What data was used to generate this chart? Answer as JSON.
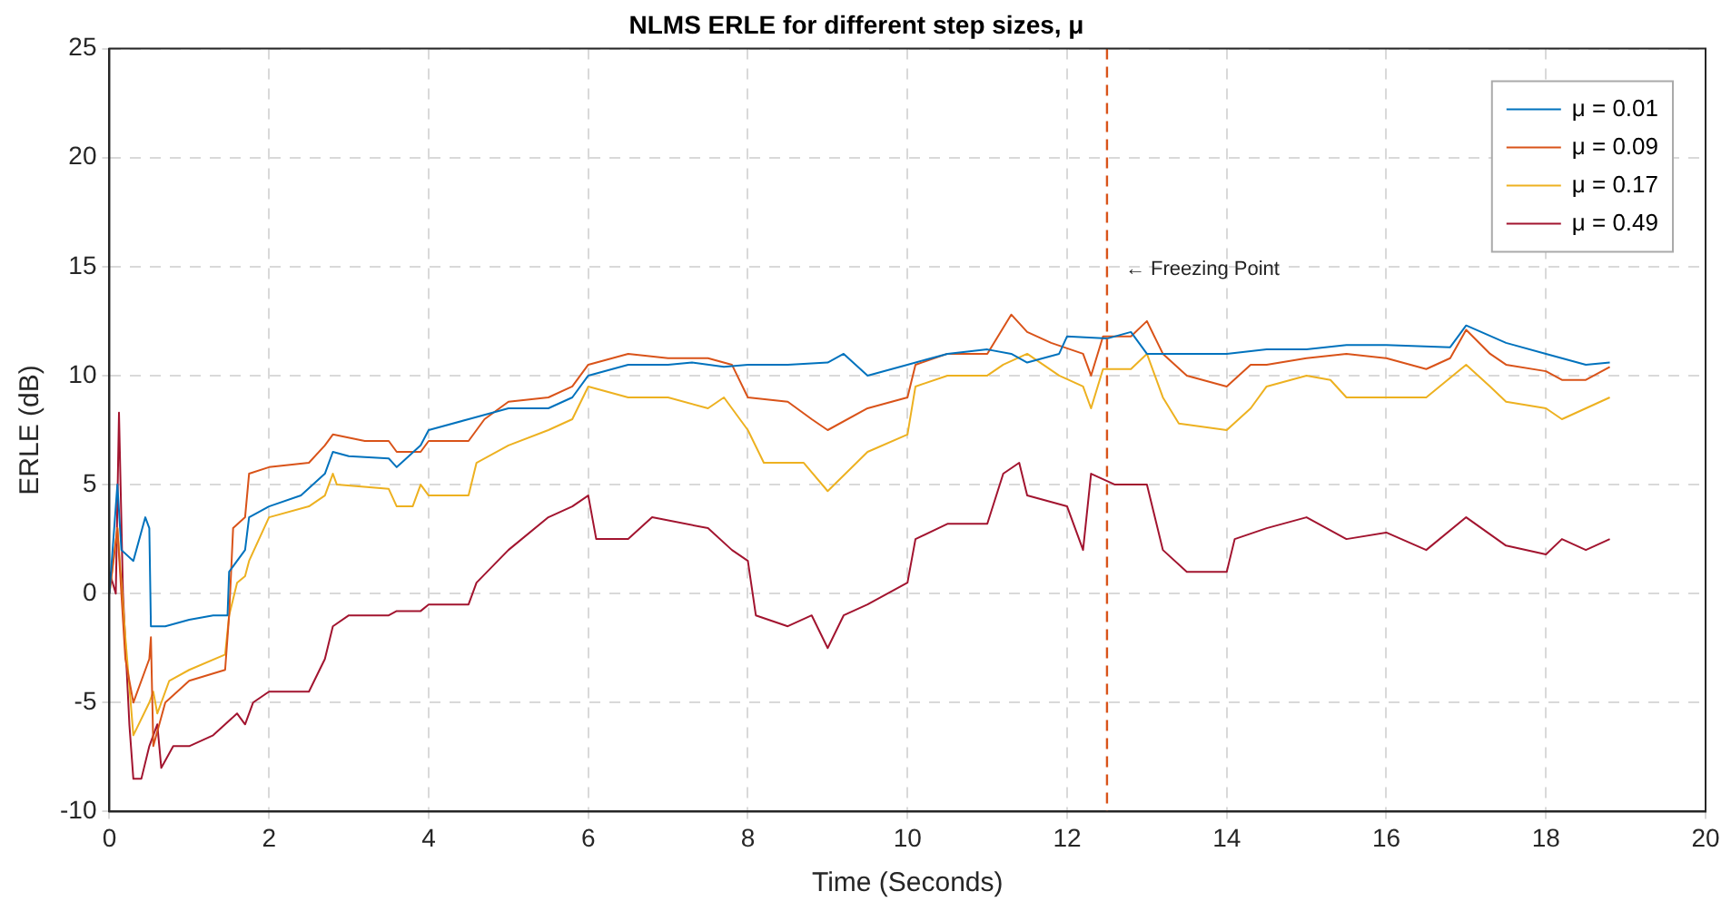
{
  "chart_data": {
    "type": "line",
    "title": "NLMS ERLE for different step sizes, μ",
    "xlabel": "Time (Seconds)",
    "ylabel": "ERLE (dB)",
    "xlim": [
      0,
      20
    ],
    "xticks": [
      0,
      2,
      4,
      6,
      8,
      10,
      12,
      14,
      16,
      18,
      20
    ],
    "ylim": [
      -10,
      25
    ],
    "yticks": [
      -10,
      -5,
      0,
      5,
      10,
      15,
      20,
      25
    ],
    "grid": true,
    "legend": "top right",
    "marker": "none",
    "line_style": "solid",
    "series": [
      {
        "name": "μ = 0.01",
        "color": "#0072bd",
        "x": [
          0,
          0.1,
          0.15,
          0.3,
          0.45,
          0.5,
          0.52,
          0.7,
          1.0,
          1.3,
          1.48,
          1.5,
          1.7,
          1.75,
          2.0,
          2.4,
          2.7,
          2.8,
          3.0,
          3.5,
          3.6,
          3.9,
          4.0,
          4.5,
          5.0,
          5.5,
          5.8,
          6.0,
          6.5,
          7.0,
          7.3,
          7.7,
          8.0,
          8.5,
          9.0,
          9.2,
          9.5,
          10.0,
          10.5,
          11.0,
          11.3,
          11.5,
          11.9,
          12.0,
          12.5,
          12.8,
          13.0,
          14.0,
          14.5,
          15.0,
          15.5,
          16.0,
          16.8,
          17.0,
          17.5,
          18.0,
          18.5,
          18.8
        ],
        "values": [
          0,
          5,
          2,
          1.5,
          3.5,
          3,
          -1.5,
          -1.5,
          -1.2,
          -1,
          -1,
          1,
          2,
          3.5,
          4,
          4.5,
          5.5,
          6.5,
          6.3,
          6.2,
          5.8,
          6.8,
          7.5,
          8,
          8.5,
          8.5,
          9,
          10,
          10.5,
          10.5,
          10.6,
          10.4,
          10.5,
          10.5,
          10.6,
          11,
          10,
          10.5,
          11,
          11.2,
          11,
          10.6,
          11,
          11.8,
          11.7,
          12,
          11,
          11,
          11.2,
          11.2,
          11.4,
          11.4,
          11.3,
          12.3,
          11.5,
          11,
          10.5,
          10.6
        ]
      },
      {
        "name": "μ = 0.09",
        "color": "#d95319",
        "x": [
          0,
          0.1,
          0.2,
          0.3,
          0.5,
          0.52,
          0.55,
          0.7,
          1.0,
          1.45,
          1.5,
          1.55,
          1.7,
          1.75,
          2.0,
          2.5,
          2.7,
          2.8,
          3.2,
          3.5,
          3.6,
          3.9,
          4.0,
          4.5,
          4.7,
          5.0,
          5.5,
          5.8,
          6.0,
          6.5,
          7.0,
          7.5,
          7.8,
          8.0,
          8.5,
          8.8,
          9.0,
          9.5,
          10.0,
          10.1,
          10.5,
          11.0,
          11.3,
          11.5,
          11.8,
          12.2,
          12.3,
          12.45,
          12.8,
          13.0,
          13.2,
          13.5,
          14.0,
          14.3,
          14.5,
          15.0,
          15.5,
          16.0,
          16.5,
          16.8,
          17.0,
          17.3,
          17.5,
          18.0,
          18.2,
          18.5,
          18.8
        ],
        "values": [
          0,
          3,
          -3,
          -5,
          -3,
          -2,
          -7,
          -5,
          -4,
          -3.5,
          -1,
          3,
          3.5,
          5.5,
          5.8,
          6,
          6.8,
          7.3,
          7,
          7,
          6.5,
          6.5,
          7,
          7,
          8,
          8.8,
          9,
          9.5,
          10.5,
          11,
          10.8,
          10.8,
          10.5,
          9,
          8.8,
          8,
          7.5,
          8.5,
          9,
          10.5,
          11,
          11,
          12.8,
          12,
          11.5,
          11,
          10,
          11.8,
          11.8,
          12.5,
          11,
          10,
          9.5,
          10.5,
          10.5,
          10.8,
          11,
          10.8,
          10.3,
          10.8,
          12.1,
          11,
          10.5,
          10.2,
          9.8,
          9.8,
          10.4
        ]
      },
      {
        "name": "μ = 0.17",
        "color": "#edb120",
        "x": [
          0,
          0.1,
          0.2,
          0.3,
          0.5,
          0.55,
          0.6,
          0.75,
          1.0,
          1.45,
          1.5,
          1.6,
          1.7,
          1.75,
          2.0,
          2.5,
          2.7,
          2.8,
          2.85,
          3.5,
          3.6,
          3.8,
          3.9,
          4.0,
          4.5,
          4.6,
          5.0,
          5.5,
          5.8,
          6.0,
          6.5,
          7.0,
          7.5,
          7.7,
          8.0,
          8.2,
          8.7,
          9.0,
          9.5,
          10.0,
          10.1,
          10.5,
          11.0,
          11.2,
          11.5,
          11.9,
          12.2,
          12.3,
          12.45,
          12.8,
          13.0,
          13.2,
          13.4,
          14.0,
          14.3,
          14.5,
          15.0,
          15.3,
          15.5,
          16.0,
          16.5,
          17.0,
          17.3,
          17.5,
          18.0,
          18.2,
          18.5,
          18.8
        ],
        "values": [
          0,
          3,
          -2,
          -6.5,
          -5,
          -4.5,
          -5.5,
          -4,
          -3.5,
          -2.8,
          -1,
          0.5,
          0.8,
          1.5,
          3.5,
          4,
          4.5,
          5.5,
          5,
          4.8,
          4,
          4,
          5,
          4.5,
          4.5,
          6,
          6.8,
          7.5,
          8,
          9.5,
          9,
          9,
          8.5,
          9,
          7.5,
          6,
          6,
          4.7,
          6.5,
          7.3,
          9.5,
          10,
          10,
          10.5,
          11,
          10,
          9.5,
          8.5,
          10.3,
          10.3,
          11,
          9,
          7.8,
          7.5,
          8.5,
          9.5,
          10,
          9.8,
          9,
          9,
          9,
          10.5,
          9.5,
          8.8,
          8.5,
          8,
          8.5,
          9
        ]
      },
      {
        "name": "μ = 0.49",
        "color": "#a2142f",
        "x": [
          0,
          0.08,
          0.12,
          0.17,
          0.25,
          0.3,
          0.4,
          0.5,
          0.6,
          0.65,
          0.8,
          1.0,
          1.3,
          1.6,
          1.7,
          1.8,
          2.0,
          2.5,
          2.7,
          2.8,
          3.0,
          3.5,
          3.6,
          3.9,
          4.0,
          4.5,
          4.6,
          5.0,
          5.5,
          5.8,
          6.0,
          6.1,
          6.5,
          6.8,
          7.5,
          7.8,
          8.0,
          8.1,
          8.5,
          8.8,
          9.0,
          9.2,
          9.5,
          10.0,
          10.1,
          10.5,
          11.0,
          11.2,
          11.4,
          11.5,
          12.0,
          12.1,
          12.2,
          12.3,
          12.6,
          13.0,
          13.2,
          13.5,
          14.0,
          14.1,
          14.5,
          15.0,
          15.5,
          16.0,
          16.5,
          17.0,
          17.5,
          18.0,
          18.2,
          18.5,
          18.8
        ],
        "values": [
          1,
          0,
          8.3,
          0,
          -6,
          -8.5,
          -8.5,
          -7,
          -6,
          -8,
          -7,
          -7,
          -6.5,
          -5.5,
          -6,
          -5,
          -4.5,
          -4.5,
          -3,
          -1.5,
          -1,
          -1,
          -0.8,
          -0.8,
          -0.5,
          -0.5,
          0.5,
          2,
          3.5,
          4,
          4.5,
          2.5,
          2.5,
          3.5,
          3,
          2,
          1.5,
          -1,
          -1.5,
          -1,
          -2.5,
          -1,
          -0.5,
          0.5,
          2.5,
          3.2,
          3.2,
          5.5,
          6,
          4.5,
          4,
          3,
          2,
          5.5,
          5,
          5,
          2,
          1,
          1,
          2.5,
          3,
          3.5,
          2.5,
          2.8,
          2,
          3.5,
          2.2,
          1.8,
          2.5,
          2,
          2.5
        ]
      }
    ],
    "ref_lines": [
      {
        "axis": "x",
        "value": 12.5,
        "color": "#d95319",
        "line_style": "dashed"
      }
    ],
    "annotations": [
      "← Freezing Point"
    ]
  }
}
